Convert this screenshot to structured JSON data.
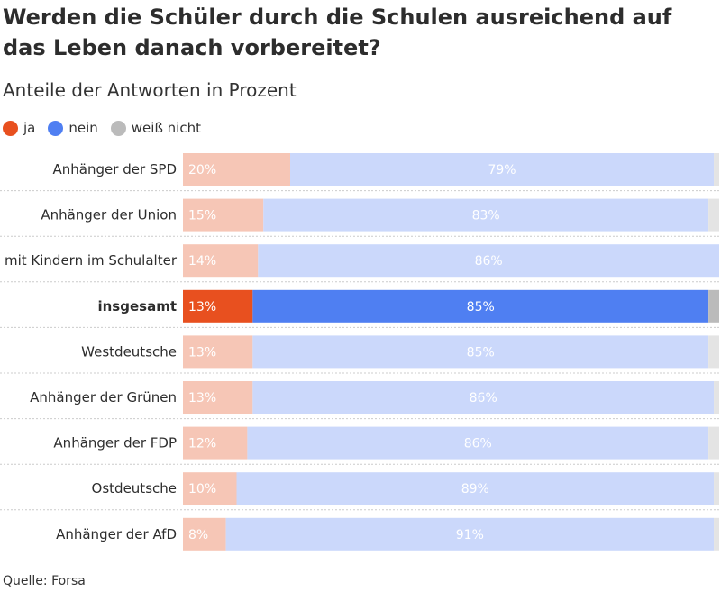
{
  "title": "Werden die Schüler durch die Schulen ausreichend auf das Leben danach vorbereitet?",
  "subtitle": "Anteile der Antworten in Prozent",
  "source": "Quelle: Forsa",
  "legend": [
    {
      "label": "ja",
      "color": "#e8501f"
    },
    {
      "label": "nein",
      "color": "#4f7ff2"
    },
    {
      "label": "weiß nicht",
      "color": "#bbbbbb"
    }
  ],
  "chart_data": {
    "type": "bar",
    "orientation": "horizontal",
    "stacked": true,
    "grid": false,
    "legend_position": "top-left",
    "xlim": [
      0,
      100
    ],
    "highlight_category": "insgesamt",
    "colors": {
      "ja": "#e8501f",
      "nein": "#4f7ff2",
      "weiss_nicht": "#bbbbbb",
      "ja_light": "#f6c6b6",
      "nein_light": "#cbd8fb",
      "weiss_nicht_light": "#e4e4e4"
    },
    "categories": [
      "Anhänger der SPD",
      "Anhänger der Union",
      "mit Kindern im Schulalter",
      "insgesamt",
      "Westdeutsche",
      "Anhänger der Grünen",
      "Anhänger der FDP",
      "Ostdeutsche",
      "Anhänger der AfD"
    ],
    "series": [
      {
        "name": "ja",
        "values": [
          20,
          15,
          14,
          13,
          13,
          13,
          12,
          10,
          8
        ],
        "labels": [
          "20%",
          "15%",
          "14%",
          "13%",
          "13%",
          "13%",
          "12%",
          "10%",
          "8%"
        ]
      },
      {
        "name": "nein",
        "values": [
          79,
          83,
          86,
          85,
          85,
          86,
          86,
          89,
          91
        ],
        "labels": [
          "79%",
          "83%",
          "86%",
          "85%",
          "85%",
          "86%",
          "86%",
          "89%",
          "91%"
        ]
      },
      {
        "name": "weiß nicht",
        "values": [
          1,
          2,
          0,
          2,
          2,
          1,
          2,
          1,
          1
        ]
      }
    ]
  }
}
